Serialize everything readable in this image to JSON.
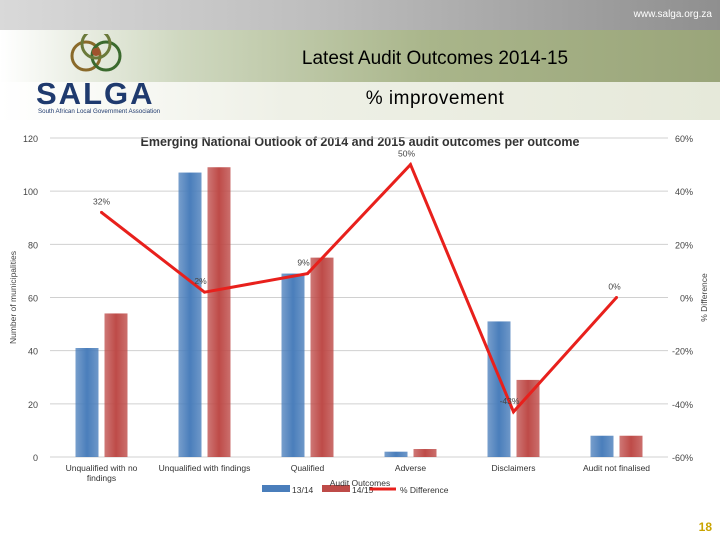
{
  "header": {
    "url": "www.salga.org.za"
  },
  "slide": {
    "title": "Latest Audit Outcomes 2014-15",
    "subtitle": "% improvement",
    "page_number": "18"
  },
  "logo": {
    "word": "SALGA",
    "tagline": "South African Local Government Association"
  },
  "chart_data": {
    "type": "bar",
    "title": "Emerging National Outlook of 2014 and 2015 audit outcomes per outcome",
    "categories": [
      "Unqualified with no findings",
      "Unqualified with findings",
      "Qualified",
      "Adverse",
      "Disclaimers",
      "Audit not finalised"
    ],
    "category_lines": [
      [
        "Unqualified with no",
        "findings"
      ],
      [
        "Unqualified with findings"
      ],
      [
        "Qualified"
      ],
      [
        "Adverse"
      ],
      [
        "Disclaimers"
      ],
      [
        "Audit not finalised"
      ]
    ],
    "series": [
      {
        "name": "13/14",
        "color": "#4a7ebb",
        "values": [
          41,
          107,
          69,
          2,
          51,
          8
        ]
      },
      {
        "name": "14/15",
        "color": "#be4b48",
        "values": [
          54,
          109,
          75,
          3,
          29,
          8
        ]
      }
    ],
    "line": {
      "name": "% Difference",
      "color": "#e8201c",
      "values": [
        32,
        2,
        9,
        50,
        -43,
        0
      ]
    },
    "line_labels": [
      "32%",
      "2%",
      "9%",
      "50%",
      "-43%",
      "0%"
    ],
    "xlabel": "Audit Outcomes",
    "ylabel": "Number of municipalities",
    "y2label": "% Difference",
    "ylim": [
      0,
      120
    ],
    "y_ticks": [
      0,
      20,
      40,
      60,
      80,
      100,
      120
    ],
    "y2lim": [
      -60,
      60
    ],
    "y2_tick_labels": [
      "-60%",
      "-40%",
      "-20%",
      "0%",
      "20%",
      "40%",
      "60%"
    ],
    "legend": [
      "13/14",
      "14/15",
      "% Difference"
    ]
  }
}
